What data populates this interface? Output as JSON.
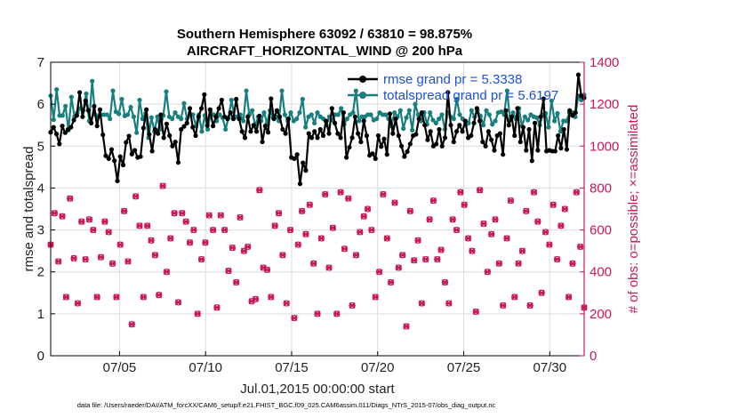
{
  "chart_data": {
    "type": "line",
    "title": [
      "Southern Hemisphere 63092 / 63810 = 98.875%",
      "AIRCRAFT_HORIZONTAL_WIND @ 200 hPa"
    ],
    "xlabel": "Jul.01,2015 00:00:00 start",
    "ylabel_left": "rmse and totalspread",
    "ylabel_right": "# of obs: o=possible; ×=assimilated",
    "ylim_left": [
      0,
      7
    ],
    "ylim_right": [
      0,
      1400
    ],
    "x_range_days": [
      1.0,
      32.0
    ],
    "x_ticks": [
      {
        "day": 5,
        "label": "07/05"
      },
      {
        "day": 10,
        "label": "07/10"
      },
      {
        "day": 15,
        "label": "07/15"
      },
      {
        "day": 20,
        "label": "07/20"
      },
      {
        "day": 25,
        "label": "07/25"
      },
      {
        "day": 30,
        "label": "07/30"
      }
    ],
    "left_ticks": [
      0,
      1,
      2,
      3,
      4,
      5,
      6,
      7
    ],
    "right_ticks": [
      0,
      200,
      400,
      600,
      800,
      1000,
      1200,
      1400
    ],
    "grid": true,
    "legend_position": "top-right",
    "series": [
      {
        "name": "rmse grand pr = 5.3338",
        "color": "#000000",
        "axis": "left",
        "values": [
          5.33,
          5.45,
          5.29,
          5.05,
          5.48,
          5.32,
          5.4,
          5.45,
          5.62,
          5.73,
          6.28,
          5.7,
          6.08,
          5.85,
          5.55,
          5.95,
          5.48,
          5.87,
          5.27,
          4.77,
          4.7,
          4.92,
          4.65,
          4.17,
          4.75,
          4.55,
          5.09,
          5.24,
          4.81,
          4.9,
          4.73,
          4.75,
          5.43,
          5.87,
          5.28,
          4.88,
          5.4,
          5.3,
          5.75,
          5.2,
          5.53,
          5.25,
          5.0,
          5.1,
          4.61,
          5.4,
          5.47,
          5.55,
          5.9,
          5.45,
          5.25,
          5.7,
          5.9,
          6.23,
          5.49,
          5.87,
          5.48,
          5.7,
          5.9,
          6.1,
          5.7,
          5.65,
          5.8,
          5.65,
          6.12,
          5.65,
          5.35,
          5.2,
          5.7,
          5.35,
          5.5,
          5.35,
          5.72,
          5.1,
          5.48,
          5.33,
          6.13,
          5.65,
          5.85,
          5.7,
          5.4,
          5.3,
          5.65,
          4.73,
          4.7,
          4.8,
          4.1,
          4.6,
          4.42,
          5.3,
          5.2,
          5.35,
          5.2,
          5.4,
          5.25,
          5.6,
          5.3,
          5.9,
          5.55,
          5.3,
          5.2,
          5.8,
          4.73,
          4.97,
          5.2,
          5.7,
          5.3,
          5.1,
          5.6,
          5.25,
          4.78,
          4.82,
          4.7,
          5.25,
          4.99,
          5.17,
          4.8,
          5.77,
          5.3,
          5.65,
          5.25,
          5.0,
          4.75,
          4.87,
          5.05,
          5.25,
          5.28,
          5.65,
          5.8,
          5.5,
          5.15,
          5.35,
          5.0,
          5.05,
          5.4,
          5.0,
          5.2,
          6.28,
          5.5,
          5.1,
          5.35,
          5.5,
          5.35,
          5.6,
          5.2,
          5.25,
          5.55,
          5.9,
          5.6,
          5.1,
          5.0,
          5.35,
          5.15,
          4.9,
          5.25,
          5.3,
          4.8,
          5.85,
          5.5,
          5.7,
          5.25,
          5.9,
          5.1,
          5.45,
          4.9,
          5.4,
          4.65,
          5.55,
          4.9,
          5.7,
          6.13,
          4.88,
          4.9,
          4.88,
          4.88,
          5.25,
          4.95,
          5.4,
          4.92,
          5.85,
          5.73,
          5.8,
          6.7,
          6.2,
          6.15
        ]
      },
      {
        "name": "totalspread grand pr = 5.6197",
        "color": "#17807e",
        "axis": "left",
        "values": [
          6.2,
          5.63,
          6.35,
          5.73,
          5.73,
          5.95,
          5.38,
          6.17,
          5.7,
          5.8,
          5.9,
          5.85,
          6.25,
          5.6,
          6.55,
          5.75,
          5.7,
          5.75,
          5.75,
          5.75,
          5.65,
          6.32,
          5.82,
          5.77,
          6.12,
          5.72,
          5.75,
          5.93,
          5.7,
          5.32,
          6.1,
          5.65,
          5.78,
          5.2,
          5.68,
          5.35,
          5.7,
          5.4,
          5.73,
          6.3,
          5.7,
          5.65,
          5.8,
          5.7,
          5.65,
          6.02,
          5.65,
          5.73,
          5.75,
          5.48,
          5.75,
          5.35,
          5.73,
          5.4,
          5.8,
          5.75,
          5.6,
          5.75,
          5.68,
          5.4,
          5.68,
          6.1,
          5.7,
          5.7,
          5.75,
          5.6,
          6.32,
          5.75,
          5.85,
          5.48,
          5.7,
          5.6,
          5.8,
          5.55,
          5.85,
          5.68,
          5.7,
          5.6,
          6.32,
          5.75,
          5.6,
          5.8,
          5.6,
          5.65,
          5.8,
          6.12,
          5.45,
          5.7,
          5.75,
          5.55,
          5.8,
          5.7,
          5.65,
          5.5,
          5.7,
          5.62,
          5.75,
          5.75,
          5.9,
          5.52,
          5.65,
          5.75,
          5.8,
          6.32,
          5.6,
          5.7,
          5.7,
          5.75,
          5.75,
          5.62,
          5.65,
          5.8,
          5.75,
          5.75,
          5.65,
          5.48,
          5.8,
          5.7,
          5.85,
          5.42,
          5.68,
          5.85,
          5.38,
          6.0,
          5.75,
          5.6,
          5.8,
          5.52,
          5.8,
          5.62,
          5.55,
          5.65,
          5.75,
          5.4,
          5.8,
          5.7,
          5.65,
          6.12,
          5.75,
          5.65,
          5.5,
          5.55,
          5.85,
          5.7,
          5.85,
          5.72,
          5.5,
          5.85,
          5.75,
          5.52,
          5.6,
          5.8,
          5.82,
          5.75,
          6.32,
          5.62,
          5.8,
          5.65,
          5.9,
          5.48,
          5.7,
          5.62,
          5.75,
          5.7,
          5.68,
          5.5,
          5.75,
          5.78,
          5.45,
          6.08,
          5.6,
          5.78,
          5.35,
          5.6,
          5.6,
          5.8,
          5.8,
          5.7,
          6.2,
          6.1,
          6.22
        ]
      },
      {
        "name": "# obs possible",
        "color": "#c8175a",
        "axis": "right",
        "marker": "o",
        "values": [
          530,
          680,
          450,
          665,
          280,
          750,
          465,
          250,
          640,
          460,
          650,
          600,
          280,
          470,
          640,
          590,
          440,
          280,
          530,
          690,
          450,
          150,
          760,
          620,
          280,
          620,
          550,
          480,
          290,
          810,
          400,
          560,
          680,
          255,
          680,
          640,
          540,
          600,
          200,
          460,
          540,
          670,
          600,
          230,
          670,
          600,
          405,
          515,
          350,
          660,
          500,
          520,
          260,
          270,
          790,
          420,
          410,
          280,
          620,
          680,
          480,
          250,
          600,
          180,
          530,
          690,
          580,
          720,
          440,
          200,
          560,
          770,
          420,
          610,
          200,
          780,
          510,
          750,
          240,
          480,
          590,
          665,
          700,
          600,
          280,
          400,
          770,
          560,
          350,
          730,
          420,
          480,
          140,
          690,
          455,
          550,
          250,
          460,
          650,
          740,
          460,
          505,
          350,
          250,
          650,
          600,
          780,
          720,
          560,
          500,
          210,
          790,
          630,
          400,
          580,
          650,
          440,
          240,
          560,
          740,
          280,
          440,
          500,
          690,
          240,
          780,
          640,
          300,
          590,
          530,
          720,
          460,
          620,
          700,
          280,
          440,
          780,
          520,
          230
        ]
      },
      {
        "name": "# obs assimilated",
        "color": "#c8175a",
        "axis": "right",
        "marker": "x",
        "values": [
          530,
          680,
          450,
          665,
          280,
          750,
          465,
          250,
          640,
          460,
          650,
          600,
          280,
          470,
          640,
          590,
          440,
          280,
          530,
          690,
          450,
          150,
          760,
          620,
          280,
          620,
          550,
          480,
          290,
          810,
          400,
          560,
          680,
          255,
          680,
          640,
          540,
          600,
          200,
          460,
          540,
          670,
          600,
          230,
          670,
          600,
          405,
          515,
          350,
          660,
          500,
          520,
          260,
          270,
          790,
          420,
          410,
          280,
          620,
          680,
          480,
          250,
          600,
          180,
          530,
          690,
          580,
          720,
          440,
          200,
          560,
          770,
          420,
          610,
          200,
          780,
          510,
          750,
          240,
          480,
          590,
          665,
          700,
          600,
          280,
          400,
          770,
          560,
          350,
          730,
          420,
          480,
          140,
          690,
          455,
          550,
          250,
          460,
          650,
          740,
          460,
          505,
          350,
          250,
          650,
          600,
          780,
          720,
          560,
          500,
          210,
          790,
          630,
          400,
          580,
          650,
          440,
          240,
          560,
          740,
          280,
          440,
          500,
          690,
          240,
          780,
          640,
          300,
          590,
          530,
          720,
          460,
          620,
          700,
          280,
          440,
          780,
          520,
          230
        ]
      }
    ]
  },
  "footnote": "data file: /Users/raeder/DAI/ATM_forcXX/CAM6_setup/f.e21.FHIST_BGC.f09_025.CAM6assim.011/Diags_NTrS_2015-07/obs_diag_output.nc"
}
